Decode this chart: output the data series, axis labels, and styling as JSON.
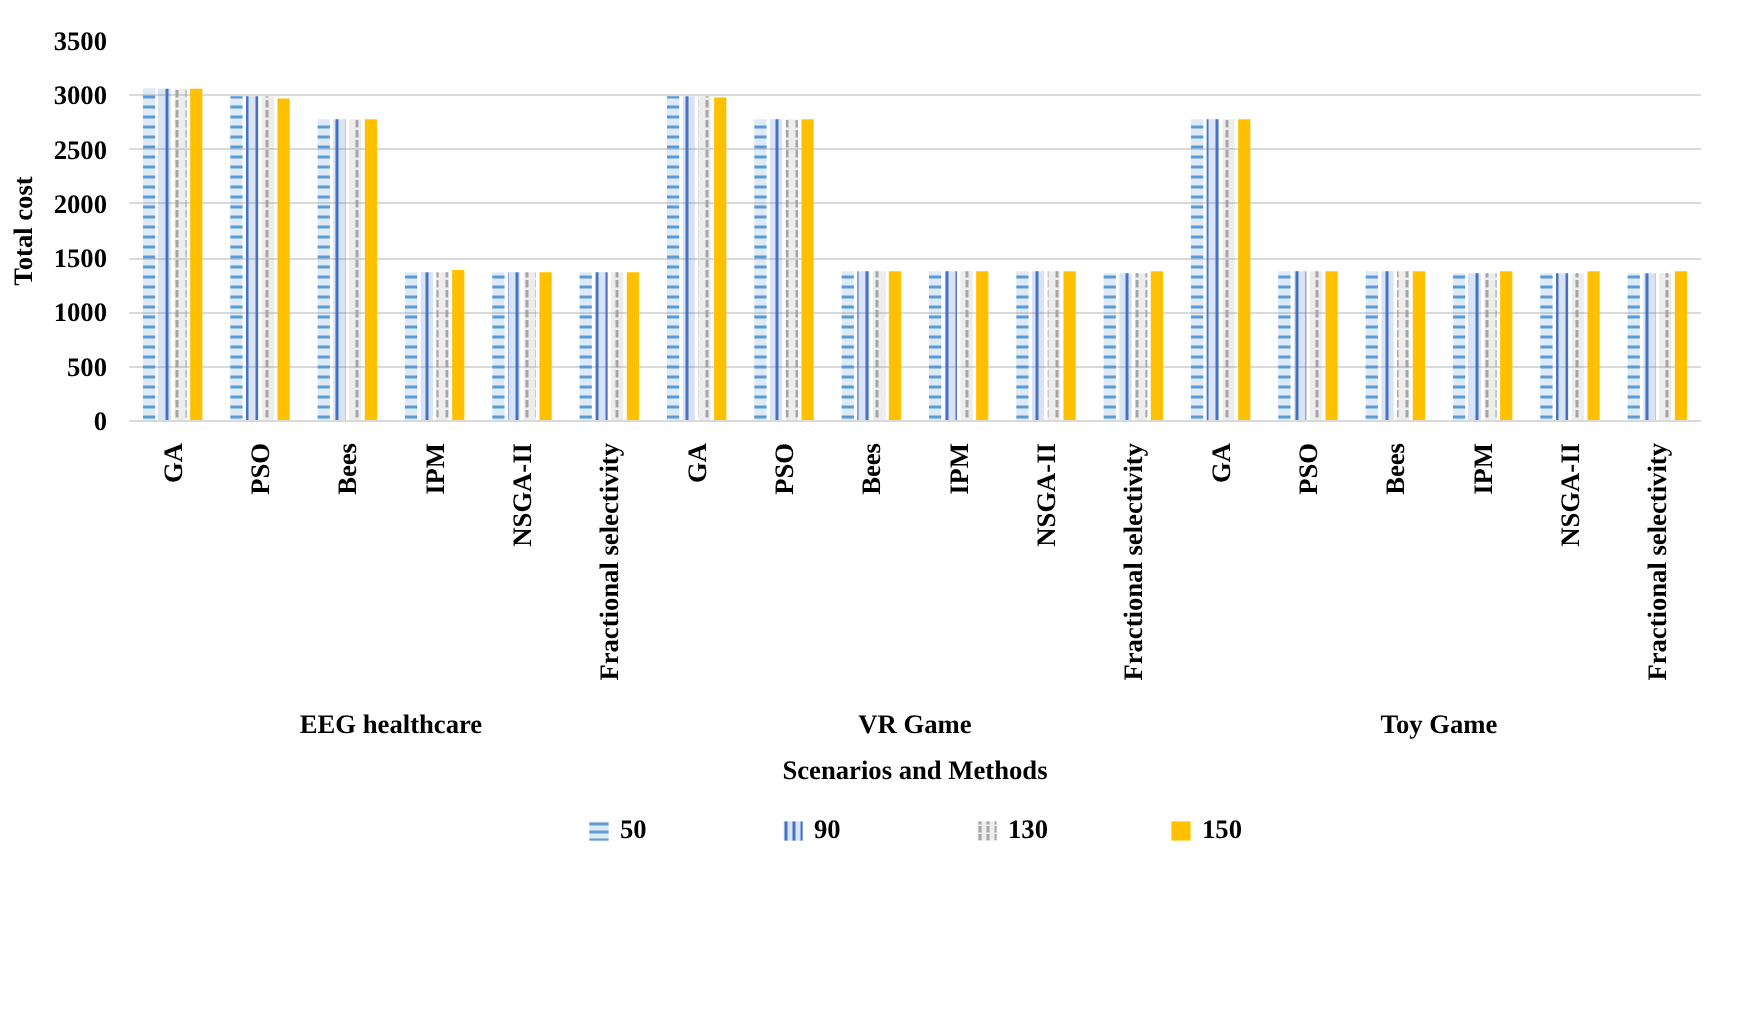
{
  "chart_data": {
    "type": "bar",
    "xlabel": "Scenarios and Methods",
    "ylabel": "Total cost",
    "categories": [
      "GA",
      "PSO",
      "Bees",
      "IPM",
      "NSGA-II",
      "Fractional selectivity",
      "GA",
      "PSO",
      "Bees",
      "IPM",
      "NSGA-II",
      "Fractional selectivity",
      "GA",
      "PSO",
      "Bees",
      "IPM",
      "NSGA-II",
      "Fractional selectivity"
    ],
    "annotations": [
      "EEG healthcare",
      "VR Game",
      "Toy Game"
    ],
    "series": [
      {
        "name": "50",
        "color": "#5b9bd5",
        "values": [
          3060,
          2990,
          2780,
          1370,
          1370,
          1370,
          2990,
          2780,
          1380,
          1380,
          1380,
          1360,
          2780,
          1380,
          1380,
          1360,
          1360,
          1360
        ]
      },
      {
        "name": "90",
        "color": "#4472c4",
        "values": [
          3060,
          2990,
          2780,
          1370,
          1370,
          1370,
          2990,
          2780,
          1380,
          1380,
          1380,
          1360,
          2780,
          1380,
          1380,
          1360,
          1360,
          1360
        ]
      },
      {
        "name": "130",
        "color": "#a5a5a5",
        "values": [
          3060,
          2990,
          2780,
          1370,
          1370,
          1370,
          2990,
          2780,
          1380,
          1380,
          1380,
          1360,
          2780,
          1380,
          1380,
          1360,
          1360,
          1360
        ]
      },
      {
        "name": "150",
        "color": "#ffc000",
        "values": [
          3060,
          2970,
          2780,
          1390,
          1370,
          1370,
          2980,
          2780,
          1380,
          1380,
          1380,
          1380,
          2780,
          1380,
          1380,
          1380,
          1380,
          1380
        ]
      }
    ],
    "ylim": [
      0,
      3500
    ],
    "yticks": [
      0,
      500,
      1000,
      1500,
      2000,
      2500,
      3000,
      3500
    ],
    "grid": "y",
    "legend": "bottom"
  }
}
